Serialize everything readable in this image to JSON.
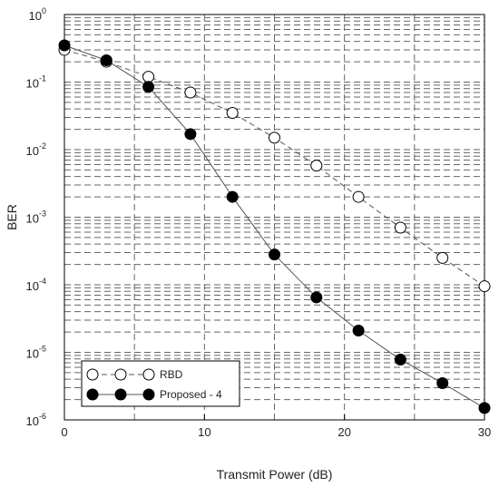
{
  "chart_data": {
    "type": "line",
    "xlabel": "Transmit Power (dB)",
    "ylabel": "BER",
    "xlim": [
      0,
      30
    ],
    "ylim": [
      1e-06,
      1
    ],
    "yscale": "log",
    "grid": true,
    "legend_position": "bottom-left",
    "x_ticks": [
      {
        "value": 0,
        "label": "0"
      },
      {
        "value": 10,
        "label": "10"
      },
      {
        "value": 20,
        "label": "20"
      },
      {
        "value": 30,
        "label": "30"
      }
    ],
    "y_ticks": [
      {
        "value": 1,
        "base": "10",
        "exp": "0"
      },
      {
        "value": 0.1,
        "base": "10",
        "exp": "-1"
      },
      {
        "value": 0.01,
        "base": "10",
        "exp": "-2"
      },
      {
        "value": 0.001,
        "base": "10",
        "exp": "-3"
      },
      {
        "value": 0.0001,
        "base": "10",
        "exp": "-4"
      },
      {
        "value": 1e-05,
        "base": "10",
        "exp": "-5"
      },
      {
        "value": 1e-06,
        "base": "10",
        "exp": "-6"
      }
    ],
    "series": [
      {
        "name": "RBD",
        "marker": "open-circle",
        "line": "dashed",
        "color": "#555555",
        "x": [
          0,
          3,
          6,
          9,
          12,
          15,
          18,
          21,
          24,
          27,
          30
        ],
        "y": [
          0.3,
          0.2,
          0.12,
          0.07,
          0.035,
          0.015,
          0.0058,
          0.002,
          0.0007,
          0.00025,
          9.5e-05
        ]
      },
      {
        "name": "Proposed - 4",
        "marker": "filled-circle",
        "line": "solid",
        "color": "#555555",
        "x": [
          0,
          3,
          6,
          9,
          12,
          15,
          18,
          21,
          24,
          27,
          30
        ],
        "y": [
          0.35,
          0.21,
          0.085,
          0.017,
          0.002,
          0.00028,
          6.5e-05,
          2.1e-05,
          7.8e-06,
          3.5e-06,
          1.5e-06
        ]
      }
    ]
  }
}
